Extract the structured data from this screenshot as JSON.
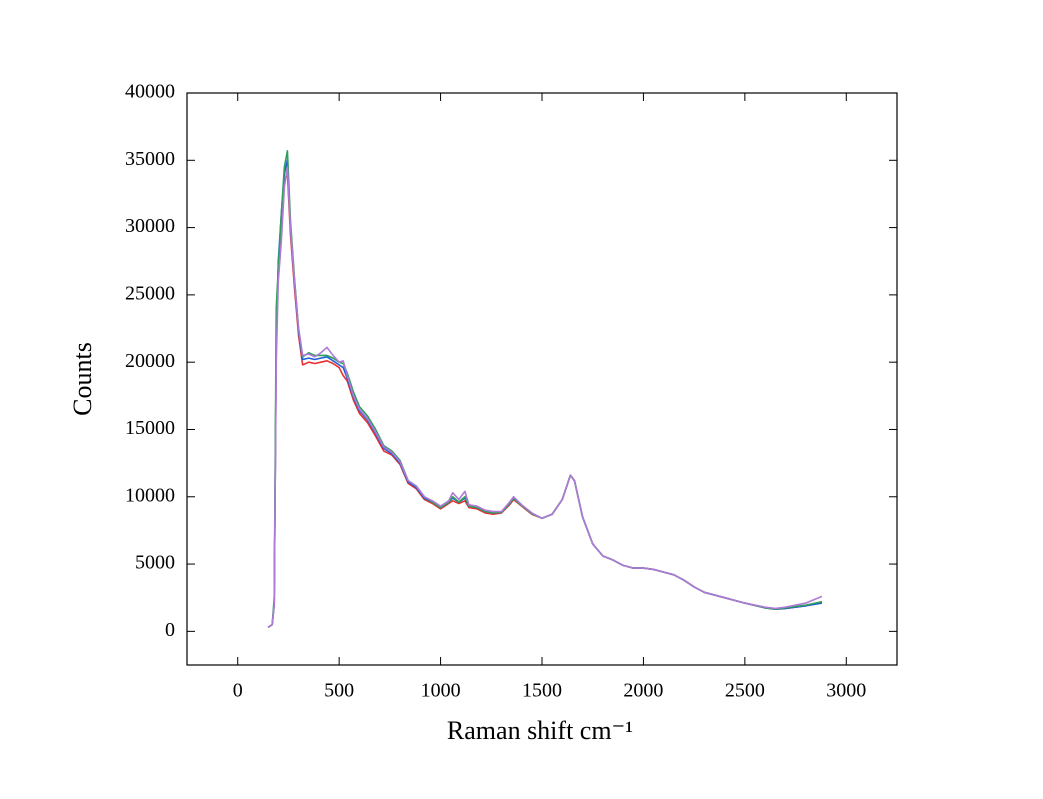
{
  "chart_data": {
    "type": "line",
    "xlabel": "Raman shift cm⁻¹",
    "ylabel": "Counts",
    "x": [
      150,
      170,
      180,
      190,
      200,
      215,
      230,
      245,
      260,
      280,
      300,
      320,
      350,
      380,
      410,
      440,
      470,
      500,
      520,
      540,
      570,
      600,
      640,
      680,
      720,
      760,
      800,
      840,
      880,
      920,
      960,
      1000,
      1040,
      1060,
      1090,
      1120,
      1140,
      1180,
      1220,
      1260,
      1300,
      1340,
      1360,
      1400,
      1450,
      1500,
      1550,
      1600,
      1640,
      1660,
      1700,
      1750,
      1800,
      1850,
      1900,
      1950,
      2000,
      2050,
      2100,
      2150,
      2200,
      2250,
      2300,
      2400,
      2500,
      2600,
      2650,
      2700,
      2800,
      2880
    ],
    "series": [
      {
        "color": "#e8302f",
        "values": [
          300,
          500,
          2000,
          21000,
          27000,
          30000,
          33500,
          34000,
          29500,
          25500,
          22000,
          19800,
          20000,
          19900,
          20000,
          20100,
          19900,
          19600,
          19000,
          18600,
          17200,
          16200,
          15500,
          14500,
          13400,
          13100,
          12400,
          11000,
          10600,
          9800,
          9500,
          9100,
          9500,
          9700,
          9500,
          9700,
          9200,
          9100,
          8800,
          8700,
          8800,
          9400,
          9800,
          9300,
          8700,
          8400,
          8700,
          9800,
          11600,
          11200,
          8500,
          6500,
          5600,
          5300,
          4900,
          4700,
          4700,
          4600,
          4400,
          4200,
          3800,
          3300,
          2900,
          2500,
          2100,
          1750,
          1650,
          1700,
          1900,
          2200
        ]
      },
      {
        "color": "#1f5fd6",
        "values": [
          300,
          500,
          2000,
          21500,
          27500,
          31000,
          34000,
          35000,
          30000,
          26000,
          22300,
          20200,
          20300,
          20200,
          20300,
          20400,
          20100,
          19800,
          19600,
          18800,
          17400,
          16400,
          15700,
          14700,
          13600,
          13200,
          12500,
          11100,
          10700,
          9900,
          9600,
          9200,
          9600,
          9900,
          9600,
          9900,
          9300,
          9200,
          8900,
          8800,
          8850,
          9500,
          9900,
          9350,
          8750,
          8400,
          8700,
          9800,
          11600,
          11200,
          8500,
          6500,
          5600,
          5300,
          4900,
          4700,
          4700,
          4600,
          4400,
          4200,
          3800,
          3300,
          2900,
          2500,
          2100,
          1750,
          1650,
          1700,
          1900,
          2100
        ]
      },
      {
        "color": "#2e9e5b",
        "values": [
          300,
          500,
          2500,
          24000,
          27000,
          31000,
          34500,
          35700,
          30500,
          26200,
          22500,
          20400,
          20700,
          20500,
          20500,
          20500,
          20300,
          20000,
          19900,
          19200,
          17800,
          16700,
          16000,
          15000,
          13800,
          13400,
          12700,
          11200,
          10800,
          10000,
          9600,
          9200,
          9600,
          10000,
          9600,
          10000,
          9300,
          9200,
          8900,
          8800,
          8850,
          9500,
          9900,
          9350,
          8750,
          8400,
          8700,
          9800,
          11600,
          11200,
          8500,
          6500,
          5600,
          5300,
          4900,
          4700,
          4700,
          4600,
          4400,
          4200,
          3800,
          3300,
          2900,
          2500,
          2100,
          1750,
          1650,
          1750,
          1950,
          2200
        ]
      },
      {
        "color": "#b07ad8",
        "values": [
          300,
          500,
          2000,
          20000,
          26000,
          29000,
          33000,
          34500,
          30000,
          26000,
          22500,
          20500,
          20600,
          20400,
          20700,
          21100,
          20500,
          20000,
          20100,
          19000,
          17500,
          16500,
          15800,
          14800,
          13700,
          13300,
          12600,
          11200,
          10800,
          10000,
          9700,
          9300,
          9700,
          10300,
          9800,
          10400,
          9400,
          9300,
          9000,
          8900,
          8900,
          9600,
          10000,
          9400,
          8800,
          8400,
          8700,
          9800,
          11600,
          11200,
          8500,
          6500,
          5600,
          5300,
          4900,
          4700,
          4700,
          4600,
          4400,
          4200,
          3800,
          3300,
          2900,
          2500,
          2100,
          1800,
          1700,
          1800,
          2100,
          2600
        ]
      }
    ],
    "xlim": [
      -250,
      3250
    ],
    "ylim": [
      -2500,
      40000
    ],
    "xticks": [
      0,
      500,
      1000,
      1500,
      2000,
      2500,
      3000
    ],
    "yticks": [
      0,
      5000,
      10000,
      15000,
      20000,
      25000,
      30000,
      35000,
      40000
    ]
  }
}
